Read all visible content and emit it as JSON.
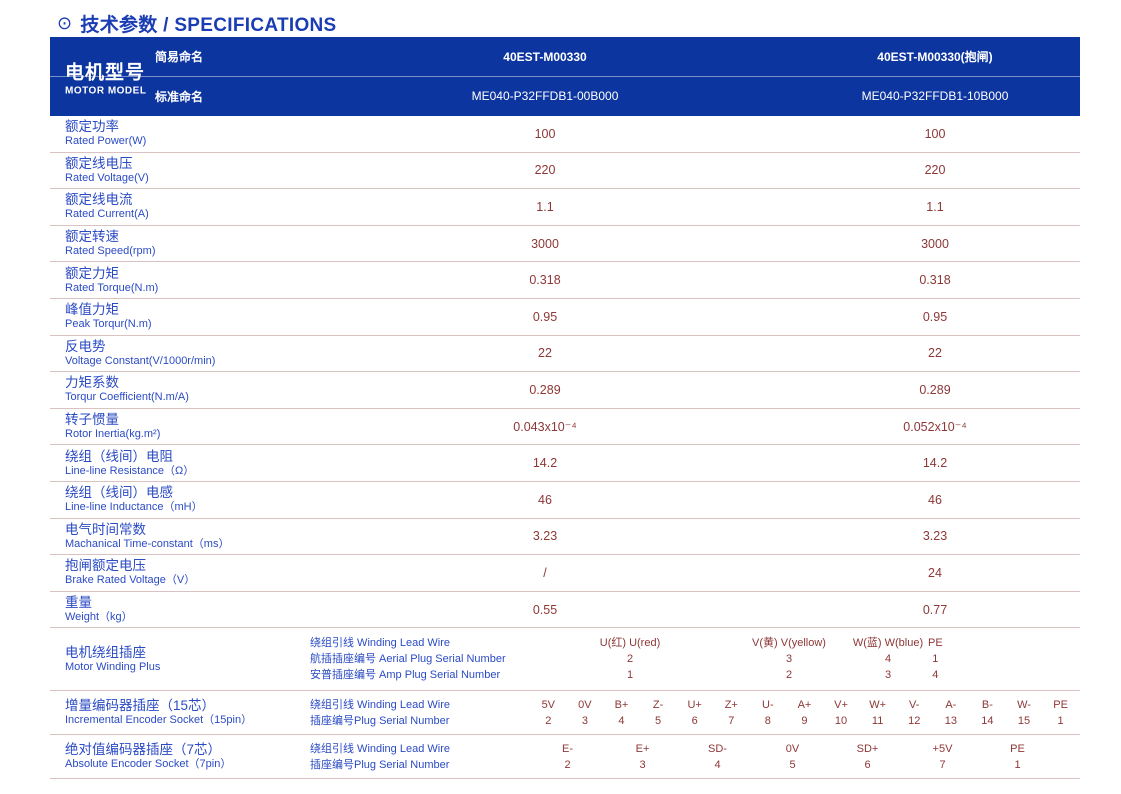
{
  "colors": {
    "header_bg": "#0d35a0",
    "title_blue": "#1b3db4",
    "label_blue": "#2b4bc4",
    "value_maroon": "#8e3737",
    "divider_pink": "#d9c2c2"
  },
  "title": {
    "icon": "⊙",
    "text": "技术参数 / SPECIFICATIONS"
  },
  "header": {
    "model_zh": "电机型号",
    "model_en": "MOTOR MODEL",
    "rows": [
      {
        "label": "简易命名",
        "col1": "40EST-M00330",
        "col2": "40EST-M00330(抱闸)"
      },
      {
        "label": "标准命名",
        "col1": "ME040-P32FFDB1-00B000",
        "col2": "ME040-P32FFDB1-10B000"
      }
    ]
  },
  "spec_rows": [
    {
      "zh": "额定功率",
      "en": "Rated Power(W)",
      "col1": "100",
      "col2": "100"
    },
    {
      "zh": "额定线电压",
      "en": "Rated Voltage(V)",
      "col1": "220",
      "col2": "220"
    },
    {
      "zh": "额定线电流",
      "en": "Rated Current(A)",
      "col1": "1.1",
      "col2": "1.1"
    },
    {
      "zh": "额定转速",
      "en": "Rated Speed(rpm)",
      "col1": "3000",
      "col2": "3000"
    },
    {
      "zh": "额定力矩",
      "en": "Rated Torque(N.m)",
      "col1": "0.318",
      "col2": "0.318"
    },
    {
      "zh": "峰值力矩",
      "en": "Peak Torqur(N.m)",
      "col1": "0.95",
      "col2": "0.95"
    },
    {
      "zh": "反电势",
      "en": "Voltage Constant(V/1000r/min)",
      "col1": "22",
      "col2": "22"
    },
    {
      "zh": "力矩系数",
      "en": "Torqur Coefficient(N.m/A)",
      "col1": "0.289",
      "col2": "0.289"
    },
    {
      "zh": "转子惯量",
      "en": "Rotor Inertia(kg.m²)",
      "col1": "0.043x10⁻⁴",
      "col2": "0.052x10⁻⁴"
    },
    {
      "zh": "绕组（线间）电阻",
      "en": "Line-line Resistance（Ω）",
      "col1": "14.2",
      "col2": "14.2"
    },
    {
      "zh": "绕组（线间）电感",
      "en": "Line-line Inductance（mH）",
      "col1": "46",
      "col2": "46"
    },
    {
      "zh": "电气时间常数",
      "en": "Machanical Time-constant（ms）",
      "col1": "3.23",
      "col2": "3.23"
    },
    {
      "zh": "抱闸额定电压",
      "en": "Brake Rated Voltage（V）",
      "col1": "/",
      "col2": "24"
    },
    {
      "zh": "重量",
      "en": "Weight（kg）",
      "col1": "0.55",
      "col2": "0.77"
    }
  ],
  "winding": {
    "zh": "电机绕组插座",
    "en": "Motor Winding Plus",
    "sub1": "绕组引线 Winding Lead Wire",
    "sub2": "航插插座编号 Aerial Plug Serial Number",
    "sub3": "安普插座编号 Amp Plug Serial Number",
    "pins": [
      {
        "wire": "U(红) U(red)",
        "aerial": "2",
        "amp": "1"
      },
      {
        "wire": "V(黄) V(yellow)",
        "aerial": "3",
        "amp": "2"
      },
      {
        "wire": "W(蓝) W(blue)",
        "aerial": "4",
        "amp": "3"
      },
      {
        "wire": "PE",
        "aerial": "1",
        "amp": "4"
      }
    ]
  },
  "encoder15": {
    "zh": "增量编码器插座（15芯）",
    "en": "Incremental Encoder Socket（15pin）",
    "sub1": "绕组引线 Winding Lead Wire",
    "sub2": "插座编号Plug Serial Number",
    "pins": [
      {
        "wire": "5V",
        "pin": "2"
      },
      {
        "wire": "0V",
        "pin": "3"
      },
      {
        "wire": "B+",
        "pin": "4"
      },
      {
        "wire": "Z-",
        "pin": "5"
      },
      {
        "wire": "U+",
        "pin": "6"
      },
      {
        "wire": "Z+",
        "pin": "7"
      },
      {
        "wire": "U-",
        "pin": "8"
      },
      {
        "wire": "A+",
        "pin": "9"
      },
      {
        "wire": "V+",
        "pin": "10"
      },
      {
        "wire": "W+",
        "pin": "11"
      },
      {
        "wire": "V-",
        "pin": "12"
      },
      {
        "wire": "A-",
        "pin": "13"
      },
      {
        "wire": "B-",
        "pin": "14"
      },
      {
        "wire": "W-",
        "pin": "15"
      },
      {
        "wire": "PE",
        "pin": "1"
      }
    ]
  },
  "encoder7": {
    "zh": "绝对值编码器插座（7芯）",
    "en": "Absolute Encoder Socket（7pin）",
    "sub1": "绕组引线 Winding Lead Wire",
    "sub2": "插座编号Plug Serial Number",
    "pins": [
      {
        "wire": "E-",
        "pin": "2"
      },
      {
        "wire": "E+",
        "pin": "3"
      },
      {
        "wire": "SD-",
        "pin": "4"
      },
      {
        "wire": "0V",
        "pin": "5"
      },
      {
        "wire": "SD+",
        "pin": "6"
      },
      {
        "wire": "+5V",
        "pin": "7"
      },
      {
        "wire": "PE",
        "pin": "1"
      }
    ]
  }
}
